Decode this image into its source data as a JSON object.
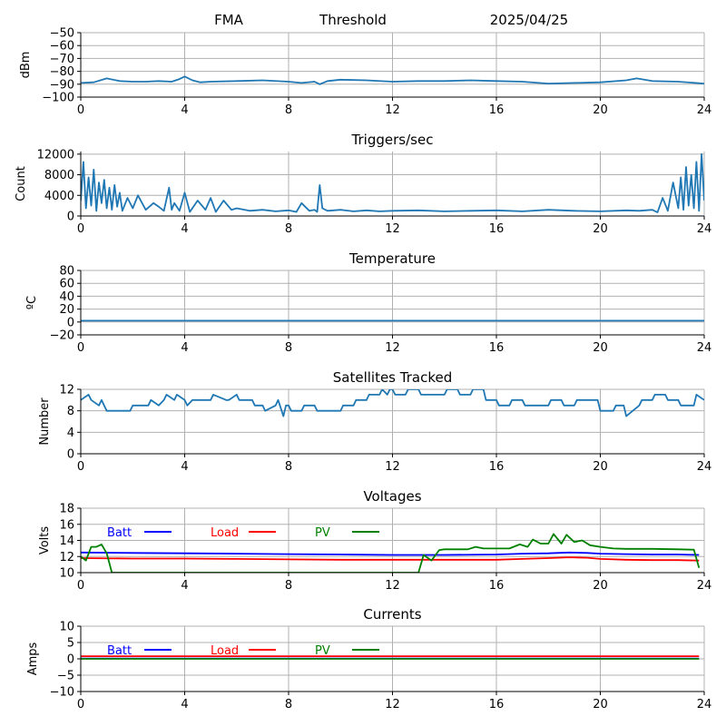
{
  "header": {
    "station": "FMA",
    "mode": "Threshold",
    "date": "2025/04/25"
  },
  "colors": {
    "default": "#1f77b4",
    "batt": "#0000ff",
    "load": "#ff0000",
    "pv": "#008000",
    "grid": "#b0b0b0"
  },
  "chart_data": [
    {
      "id": "signal",
      "type": "line",
      "title": "",
      "xlabel": "",
      "ylabel": "dBm",
      "xlim": [
        0,
        24
      ],
      "ylim": [
        -100,
        -50
      ],
      "xticks": [
        0,
        4,
        8,
        12,
        16,
        20,
        24
      ],
      "yticks": [
        -100,
        -90,
        -80,
        -70,
        -60,
        -50
      ],
      "ytick_labels": [
        "−100",
        "−90",
        "−80",
        "−70",
        "−60",
        "−50"
      ],
      "grid": true,
      "series": [
        {
          "color": "#1f77b4",
          "x": [
            0,
            0.5,
            1,
            1.5,
            2,
            2.5,
            3,
            3.5,
            3.8,
            4,
            4.3,
            4.6,
            5,
            6,
            7,
            8,
            8.5,
            9,
            9.2,
            9.5,
            10,
            11,
            12,
            13,
            14,
            15,
            16,
            17,
            18,
            19,
            20,
            21,
            21.4,
            22,
            23,
            24
          ],
          "y": [
            -89,
            -88.5,
            -85.5,
            -87.5,
            -88,
            -88,
            -87.5,
            -88,
            -86,
            -84,
            -87,
            -88.5,
            -88,
            -87.5,
            -87,
            -88,
            -89,
            -88,
            -90,
            -87.5,
            -86.5,
            -87,
            -88,
            -87.5,
            -87.5,
            -87,
            -87.5,
            -88,
            -89.5,
            -89,
            -88.5,
            -87,
            -85.5,
            -87.5,
            -88,
            -89.5
          ]
        }
      ]
    },
    {
      "id": "triggers",
      "type": "line",
      "title": "Triggers/sec",
      "xlabel": "",
      "ylabel": "Count",
      "xlim": [
        0,
        24
      ],
      "ylim": [
        0,
        12500
      ],
      "xticks": [
        0,
        4,
        8,
        12,
        16,
        20,
        24
      ],
      "yticks": [
        0,
        4000,
        8000,
        12000
      ],
      "ytick_labels": [
        "0",
        "4000",
        "8000",
        "12000"
      ],
      "grid": true,
      "series": [
        {
          "color": "#1f77b4",
          "x": [
            0,
            0.1,
            0.2,
            0.3,
            0.4,
            0.5,
            0.6,
            0.7,
            0.8,
            0.9,
            1,
            1.1,
            1.2,
            1.3,
            1.4,
            1.5,
            1.6,
            1.8,
            2,
            2.2,
            2.5,
            2.8,
            3,
            3.2,
            3.4,
            3.5,
            3.6,
            3.8,
            4,
            4.2,
            4.5,
            4.8,
            5,
            5.2,
            5.5,
            5.8,
            6,
            6.5,
            7,
            7.5,
            8,
            8.3,
            8.5,
            8.8,
            9,
            9.1,
            9.2,
            9.3,
            9.5,
            10,
            10.5,
            11,
            11.5,
            12,
            13,
            14,
            15,
            16,
            17,
            18,
            19,
            20,
            21,
            21.5,
            22,
            22.2,
            22.4,
            22.6,
            22.8,
            23,
            23.1,
            23.2,
            23.3,
            23.4,
            23.5,
            23.6,
            23.7,
            23.8,
            23.9,
            24
          ],
          "y": [
            3000,
            10500,
            1500,
            7500,
            2000,
            9000,
            1000,
            6500,
            2500,
            7000,
            1500,
            5500,
            1200,
            6000,
            1800,
            4500,
            1000,
            3500,
            1500,
            4000,
            1200,
            2500,
            1800,
            1000,
            5500,
            1200,
            2500,
            1000,
            4500,
            800,
            3000,
            1200,
            3500,
            800,
            3000,
            1200,
            1500,
            1000,
            1200,
            900,
            1100,
            800,
            2500,
            1000,
            1200,
            800,
            6000,
            1500,
            1000,
            1200,
            900,
            1100,
            900,
            1000,
            1100,
            900,
            1000,
            1100,
            900,
            1200,
            1000,
            900,
            1100,
            1000,
            1200,
            700,
            3500,
            1000,
            6500,
            1500,
            7500,
            1200,
            9500,
            2000,
            8000,
            1500,
            10500,
            1000,
            12000,
            3000
          ]
        }
      ]
    },
    {
      "id": "temperature",
      "type": "line",
      "title": "Temperature",
      "xlabel": "",
      "ylabel": "ºC",
      "xlim": [
        0,
        24
      ],
      "ylim": [
        -20,
        80
      ],
      "xticks": [
        0,
        4,
        8,
        12,
        16,
        20,
        24
      ],
      "yticks": [
        -20,
        0,
        20,
        40,
        60,
        80
      ],
      "ytick_labels": [
        "−20",
        "0",
        "20",
        "40",
        "60",
        "80"
      ],
      "grid": true,
      "series": [
        {
          "color": "#1f77b4",
          "x": [
            0,
            24
          ],
          "y": [
            2,
            2
          ]
        }
      ]
    },
    {
      "id": "satellites",
      "type": "line",
      "title": "Satellites Tracked",
      "xlabel": "",
      "ylabel": "Number",
      "xlim": [
        0,
        24
      ],
      "ylim": [
        0,
        12
      ],
      "xticks": [
        0,
        4,
        8,
        12,
        16,
        20,
        24
      ],
      "yticks": [
        0,
        4,
        8,
        12
      ],
      "ytick_labels": [
        "0",
        "4",
        "8",
        "12"
      ],
      "grid": true,
      "series": [
        {
          "color": "#1f77b4",
          "x": [
            0,
            0.3,
            0.4,
            0.7,
            0.8,
            1,
            1.9,
            2,
            2.6,
            2.7,
            3,
            3.2,
            3.3,
            3.6,
            3.7,
            4,
            4.1,
            4.3,
            4.4,
            5,
            5.1,
            5.6,
            5.7,
            6,
            6.1,
            6.6,
            6.7,
            7,
            7.1,
            7.5,
            7.6,
            7.8,
            7.9,
            8,
            8.1,
            8.5,
            8.6,
            9,
            9.1,
            10,
            10.1,
            10.5,
            10.6,
            11,
            11.1,
            11.5,
            11.6,
            11.8,
            11.9,
            12,
            12.1,
            12.5,
            12.6,
            13,
            13.1,
            14,
            14.1,
            14.5,
            14.6,
            15,
            15.1,
            15.5,
            15.6,
            16,
            16.1,
            16.5,
            16.6,
            17,
            17.1,
            18,
            18.1,
            18.5,
            18.6,
            19,
            19.1,
            19.9,
            20,
            20.5,
            20.6,
            20.9,
            21,
            21.5,
            21.6,
            22,
            22.1,
            22.5,
            22.6,
            23,
            23.1,
            23.6,
            23.7,
            24
          ],
          "y": [
            10,
            11,
            10,
            9,
            10,
            8,
            8,
            9,
            9,
            10,
            9,
            10,
            11,
            10,
            11,
            10,
            9,
            10,
            10,
            10,
            11,
            10,
            10,
            11,
            10,
            10,
            9,
            9,
            8,
            9,
            10,
            7,
            9,
            9,
            8,
            8,
            9,
            9,
            8,
            8,
            9,
            9,
            10,
            10,
            11,
            11,
            12,
            11,
            12,
            12,
            11,
            11,
            12,
            12,
            11,
            11,
            12,
            12,
            11,
            11,
            12,
            12,
            10,
            10,
            9,
            9,
            10,
            10,
            9,
            9,
            10,
            10,
            9,
            9,
            10,
            10,
            8,
            8,
            9,
            9,
            7,
            9,
            10,
            10,
            11,
            11,
            10,
            10,
            9,
            9,
            11,
            10
          ]
        }
      ]
    },
    {
      "id": "voltages",
      "type": "line",
      "title": "Voltages",
      "xlabel": "",
      "ylabel": "Volts",
      "xlim": [
        0,
        24
      ],
      "ylim": [
        10,
        18
      ],
      "xticks": [
        0,
        4,
        8,
        12,
        16,
        20,
        24
      ],
      "yticks": [
        10,
        12,
        14,
        16,
        18
      ],
      "ytick_labels": [
        "10",
        "12",
        "14",
        "16",
        "18"
      ],
      "grid": true,
      "legend": [
        {
          "name": "Batt",
          "color": "#0000ff"
        },
        {
          "name": "Load",
          "color": "#ff0000"
        },
        {
          "name": "PV",
          "color": "#008000"
        }
      ],
      "series": [
        {
          "name": "Batt",
          "color": "#0000ff",
          "x": [
            0,
            2,
            4,
            6,
            8,
            10,
            12,
            14,
            16,
            17,
            18,
            18.8,
            19.5,
            20,
            21,
            22,
            23,
            23.8
          ],
          "y": [
            12.5,
            12.45,
            12.4,
            12.35,
            12.3,
            12.25,
            12.2,
            12.2,
            12.25,
            12.35,
            12.4,
            12.5,
            12.45,
            12.35,
            12.3,
            12.25,
            12.25,
            12.2
          ]
        },
        {
          "name": "Load",
          "color": "#ff0000",
          "x": [
            0,
            2,
            4,
            6,
            8,
            10,
            12,
            14,
            16,
            17,
            18,
            18.8,
            19.5,
            20,
            21,
            22,
            23,
            23.8
          ],
          "y": [
            11.8,
            11.75,
            11.75,
            11.7,
            11.65,
            11.6,
            11.6,
            11.6,
            11.6,
            11.7,
            11.8,
            11.9,
            11.85,
            11.7,
            11.6,
            11.55,
            11.55,
            11.5
          ]
        },
        {
          "name": "PV",
          "color": "#008000",
          "x": [
            0,
            0.2,
            0.4,
            0.6,
            0.8,
            1,
            1.2,
            1.4,
            13,
            13.2,
            13.5,
            13.8,
            14,
            14.5,
            14.9,
            15.2,
            15.5,
            16,
            16.5,
            16.9,
            17.2,
            17.4,
            17.7,
            18,
            18.2,
            18.5,
            18.7,
            19,
            19.3,
            19.6,
            20,
            20.5,
            21,
            22,
            23,
            23.6,
            23.8
          ],
          "y": [
            12,
            11.5,
            13.2,
            13.2,
            13.5,
            12.4,
            10,
            10,
            10,
            12.2,
            11.5,
            12.8,
            12.9,
            12.9,
            12.9,
            13.2,
            13,
            13,
            13,
            13.5,
            13.2,
            14.1,
            13.6,
            13.6,
            14.8,
            13.6,
            14.7,
            13.8,
            14,
            13.4,
            13.2,
            13.0,
            12.95,
            12.95,
            12.9,
            12.85,
            10.6
          ]
        }
      ]
    },
    {
      "id": "currents",
      "type": "line",
      "title": "Currents",
      "xlabel": "",
      "ylabel": "Amps",
      "xlim": [
        0,
        24
      ],
      "ylim": [
        -10,
        10
      ],
      "xticks": [
        0,
        4,
        8,
        12,
        16,
        20,
        24
      ],
      "yticks": [
        -10,
        -5,
        0,
        5,
        10
      ],
      "ytick_labels": [
        "−10",
        "−5",
        "0",
        "5",
        "10"
      ],
      "grid": true,
      "legend": [
        {
          "name": "Batt",
          "color": "#0000ff"
        },
        {
          "name": "Load",
          "color": "#ff0000"
        },
        {
          "name": "PV",
          "color": "#008000"
        }
      ],
      "series": [
        {
          "name": "Batt",
          "color": "#0000ff",
          "x": [
            0,
            23.8
          ],
          "y": [
            0.1,
            0.1
          ]
        },
        {
          "name": "Load",
          "color": "#ff0000",
          "x": [
            0,
            23.8
          ],
          "y": [
            0.8,
            0.8
          ]
        },
        {
          "name": "PV",
          "color": "#008000",
          "x": [
            0,
            23.8
          ],
          "y": [
            0,
            0
          ]
        }
      ]
    }
  ]
}
